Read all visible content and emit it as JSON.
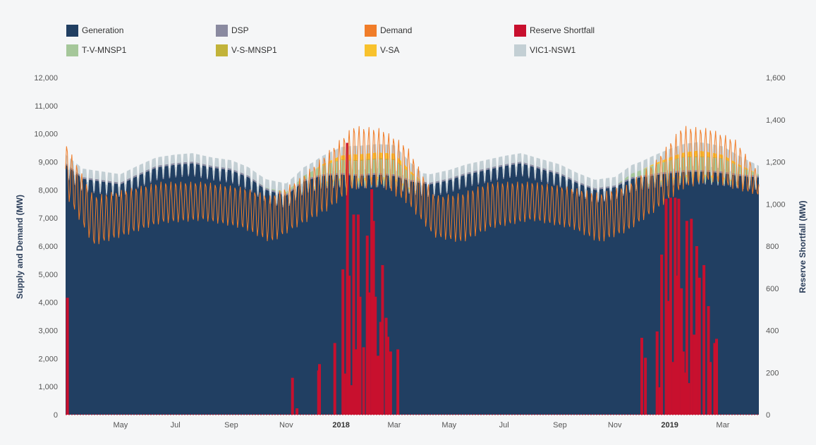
{
  "colors": {
    "background": "#f5f6f7",
    "generation": "#213f62",
    "dsp": "#8a8aa0",
    "demand": "#f07d29",
    "reserve_shortfall": "#c8102e",
    "t_v_mnsp1": "#a5c79a",
    "v_s_mnsp1": "#c2b33a",
    "v_sa": "#f8c22d",
    "vic1_nsw1": "#c3cfd4"
  },
  "legend": [
    {
      "name": "Generation",
      "color": "#213f62"
    },
    {
      "name": "DSP",
      "color": "#8a8aa0"
    },
    {
      "name": "Demand",
      "color": "#f07d29"
    },
    {
      "name": "Reserve Shortfall",
      "color": "#c8102e"
    },
    {
      "name": "T-V-MNSP1",
      "color": "#a5c79a"
    },
    {
      "name": "V-S-MNSP1",
      "color": "#c2b33a"
    },
    {
      "name": "V-SA",
      "color": "#f8c22d"
    },
    {
      "name": "VIC1-NSW1",
      "color": "#c3cfd4"
    }
  ],
  "chart_data": {
    "type": "area",
    "title": "",
    "ylabel": "Supply and Demand (MW)",
    "y2label": "Reserve Shortfall (MW)",
    "ylim": [
      0,
      12000
    ],
    "y2lim": [
      0,
      1600
    ],
    "yticks": [
      "0",
      "1,000",
      "2,000",
      "3,000",
      "4,000",
      "5,000",
      "6,000",
      "7,000",
      "8,000",
      "9,000",
      "10,000",
      "11,000",
      "12,000"
    ],
    "y2ticks": [
      "0",
      "200",
      "400",
      "600",
      "800",
      "1,000",
      "1,200",
      "1,400",
      "1,600"
    ],
    "xlim": [
      "2017-03-01",
      "2019-04-10"
    ],
    "xticks": [
      {
        "label": "May",
        "date": "2017-05-01",
        "bold": false
      },
      {
        "label": "Jul",
        "date": "2017-07-01",
        "bold": false
      },
      {
        "label": "Sep",
        "date": "2017-09-01",
        "bold": false
      },
      {
        "label": "Nov",
        "date": "2017-11-01",
        "bold": false
      },
      {
        "label": "2018",
        "date": "2018-01-01",
        "bold": true
      },
      {
        "label": "Mar",
        "date": "2018-03-01",
        "bold": false
      },
      {
        "label": "May",
        "date": "2018-05-01",
        "bold": false
      },
      {
        "label": "Jul",
        "date": "2018-07-01",
        "bold": false
      },
      {
        "label": "Sep",
        "date": "2018-09-01",
        "bold": false
      },
      {
        "label": "Nov",
        "date": "2018-11-01",
        "bold": false
      },
      {
        "label": "2019",
        "date": "2019-01-01",
        "bold": true
      },
      {
        "label": "Mar",
        "date": "2019-03-01",
        "bold": false
      }
    ],
    "grid": false,
    "legend_position": "top",
    "series": [
      {
        "name": "Generation",
        "axis": "left",
        "kind": "area",
        "x": [
          "2017-03-01",
          "2017-03-20",
          "2017-04-10",
          "2017-05-01",
          "2017-05-20",
          "2017-06-10",
          "2017-07-01",
          "2017-07-20",
          "2017-08-10",
          "2017-09-01",
          "2017-09-20",
          "2017-10-10",
          "2017-11-01",
          "2017-11-20",
          "2017-12-10",
          "2018-01-01",
          "2018-01-20",
          "2018-02-10",
          "2018-03-01",
          "2018-03-20",
          "2018-04-10",
          "2018-05-01",
          "2018-05-20",
          "2018-06-10",
          "2018-07-01",
          "2018-07-20",
          "2018-08-10",
          "2018-09-01",
          "2018-09-20",
          "2018-10-10",
          "2018-11-01",
          "2018-11-20",
          "2018-12-10",
          "2019-01-01",
          "2019-01-20",
          "2019-02-10",
          "2019-03-01",
          "2019-03-20",
          "2019-04-10"
        ],
        "values": [
          8900,
          8400,
          8300,
          8200,
          8500,
          8800,
          8900,
          8950,
          8800,
          8700,
          8450,
          8000,
          7800,
          8300,
          8500,
          8550,
          8500,
          8550,
          8500,
          8300,
          8200,
          8350,
          8550,
          8700,
          8850,
          8950,
          8750,
          8550,
          8250,
          8000,
          8100,
          8400,
          8500,
          8600,
          8650,
          8650,
          8600,
          8500,
          8450
        ]
      },
      {
        "name": "DSP",
        "axis": "left",
        "kind": "area",
        "x": [
          "2017-03-01",
          "2019-04-10"
        ],
        "values": [
          60,
          60
        ]
      },
      {
        "name": "T-V-MNSP1",
        "axis": "left",
        "kind": "area",
        "x": [
          "2017-03-01",
          "2017-10-01",
          "2017-11-15",
          "2018-01-01",
          "2018-03-01",
          "2018-04-01",
          "2018-11-01",
          "2018-12-15",
          "2019-01-15",
          "2019-03-01",
          "2019-04-10"
        ],
        "values": [
          0,
          0,
          100,
          450,
          500,
          0,
          0,
          300,
          450,
          450,
          50
        ]
      },
      {
        "name": "V-S-MNSP1",
        "axis": "left",
        "kind": "area",
        "x": [
          "2017-03-01",
          "2017-12-01",
          "2018-01-15",
          "2018-03-01",
          "2018-04-01",
          "2018-12-01",
          "2019-02-01",
          "2019-04-10"
        ],
        "values": [
          0,
          0,
          40,
          40,
          0,
          0,
          40,
          0
        ]
      },
      {
        "name": "V-SA",
        "axis": "left",
        "kind": "area",
        "x": [
          "2017-03-01",
          "2017-12-01",
          "2018-01-15",
          "2018-03-01",
          "2018-04-01",
          "2018-12-01",
          "2019-02-01",
          "2019-04-10"
        ],
        "values": [
          0,
          0,
          200,
          200,
          0,
          0,
          200,
          0
        ]
      },
      {
        "name": "VIC1-NSW1",
        "axis": "left",
        "kind": "area",
        "x": [
          "2017-03-01",
          "2019-04-10"
        ],
        "values": [
          300,
          300
        ]
      },
      {
        "name": "Demand",
        "axis": "left",
        "kind": "line",
        "x": [
          "2017-03-01",
          "2017-04-01",
          "2017-05-01",
          "2017-06-15",
          "2017-08-01",
          "2017-09-15",
          "2017-10-15",
          "2017-11-15",
          "2017-12-15",
          "2018-01-15",
          "2018-02-15",
          "2018-03-15",
          "2018-04-15",
          "2018-05-15",
          "2018-06-15",
          "2018-08-01",
          "2018-09-15",
          "2018-10-15",
          "2018-11-15",
          "2018-12-15",
          "2019-01-15",
          "2019-02-15",
          "2019-03-15",
          "2019-04-10"
        ],
        "mins": [
          7800,
          6000,
          6300,
          6800,
          6900,
          6600,
          6100,
          6700,
          7200,
          8000,
          8100,
          7500,
          6300,
          6100,
          6600,
          6900,
          6600,
          6100,
          6500,
          7200,
          8000,
          8300,
          8000,
          7800
        ],
        "maxs": [
          9700,
          7800,
          8000,
          8300,
          8300,
          8100,
          7800,
          8400,
          9300,
          10300,
          10200,
          9600,
          7800,
          7900,
          8300,
          8300,
          8100,
          7900,
          8200,
          9000,
          10300,
          10200,
          9800,
          8600
        ]
      },
      {
        "name": "Reserve Shortfall",
        "axis": "right",
        "kind": "bar",
        "points": [
          [
            "2017-03-03",
            555
          ],
          [
            "2017-11-08",
            175
          ],
          [
            "2017-11-13",
            30
          ],
          [
            "2017-12-07",
            210
          ],
          [
            "2017-12-08",
            240
          ],
          [
            "2017-12-25",
            340
          ],
          [
            "2018-01-03",
            690
          ],
          [
            "2018-01-05",
            195
          ],
          [
            "2018-01-08",
            1290
          ],
          [
            "2018-01-10",
            660
          ],
          [
            "2018-01-12",
            140
          ],
          [
            "2018-01-15",
            950
          ],
          [
            "2018-01-17",
            310
          ],
          [
            "2018-01-20",
            950
          ],
          [
            "2018-01-22",
            560
          ],
          [
            "2018-01-26",
            320
          ],
          [
            "2018-01-30",
            850
          ],
          [
            "2018-02-01",
            580
          ],
          [
            "2018-02-04",
            1070
          ],
          [
            "2018-02-06",
            920
          ],
          [
            "2018-02-08",
            560
          ],
          [
            "2018-02-11",
            280
          ],
          [
            "2018-02-14",
            440
          ],
          [
            "2018-02-16",
            710
          ],
          [
            "2018-02-20",
            460
          ],
          [
            "2018-02-22",
            370
          ],
          [
            "2018-02-25",
            300
          ],
          [
            "2018-03-05",
            310
          ],
          [
            "2018-12-01",
            365
          ],
          [
            "2018-12-05",
            270
          ],
          [
            "2018-12-18",
            395
          ],
          [
            "2018-12-21",
            130
          ],
          [
            "2018-12-23",
            760
          ],
          [
            "2018-12-28",
            1025
          ],
          [
            "2018-12-30",
            540
          ],
          [
            "2019-01-02",
            1030
          ],
          [
            "2019-01-05",
            250
          ],
          [
            "2019-01-07",
            1030
          ],
          [
            "2019-01-09",
            660
          ],
          [
            "2019-01-11",
            1025
          ],
          [
            "2019-01-14",
            600
          ],
          [
            "2019-01-16",
            300
          ],
          [
            "2019-01-18",
            200
          ],
          [
            "2019-01-20",
            920
          ],
          [
            "2019-01-22",
            150
          ],
          [
            "2019-01-25",
            930
          ],
          [
            "2019-01-28",
            380
          ],
          [
            "2019-01-31",
            800
          ],
          [
            "2019-02-03",
            650
          ],
          [
            "2019-02-08",
            710
          ],
          [
            "2019-02-13",
            515
          ],
          [
            "2019-02-15",
            250
          ],
          [
            "2019-02-20",
            340
          ],
          [
            "2019-02-22",
            360
          ]
        ]
      }
    ]
  }
}
